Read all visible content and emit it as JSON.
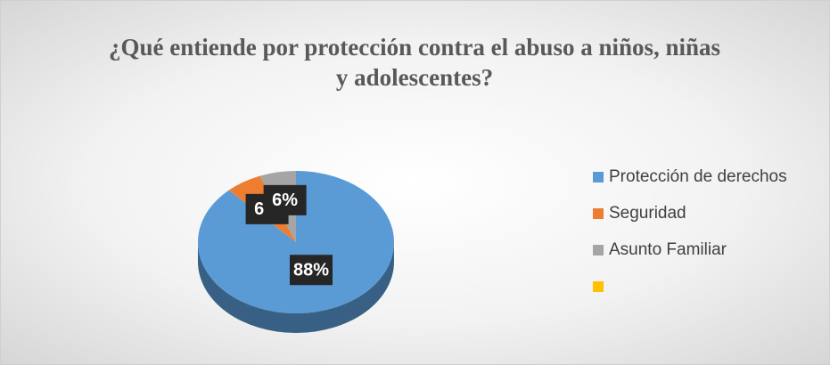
{
  "chart_data": {
    "type": "pie",
    "title": "¿Qué entiende por protección contra el abuso a niños, niñas y adolescentes?",
    "categories": [
      "Protección de derechos",
      "Seguridad",
      "Asunto Familiar",
      null
    ],
    "values": [
      88,
      6,
      6,
      0
    ],
    "value_labels": [
      "88%",
      "6%",
      "6%",
      null
    ],
    "colors": [
      "#5b9bd5",
      "#ed7d31",
      "#a5a5a5",
      "#ffc000"
    ],
    "legend": "right"
  }
}
